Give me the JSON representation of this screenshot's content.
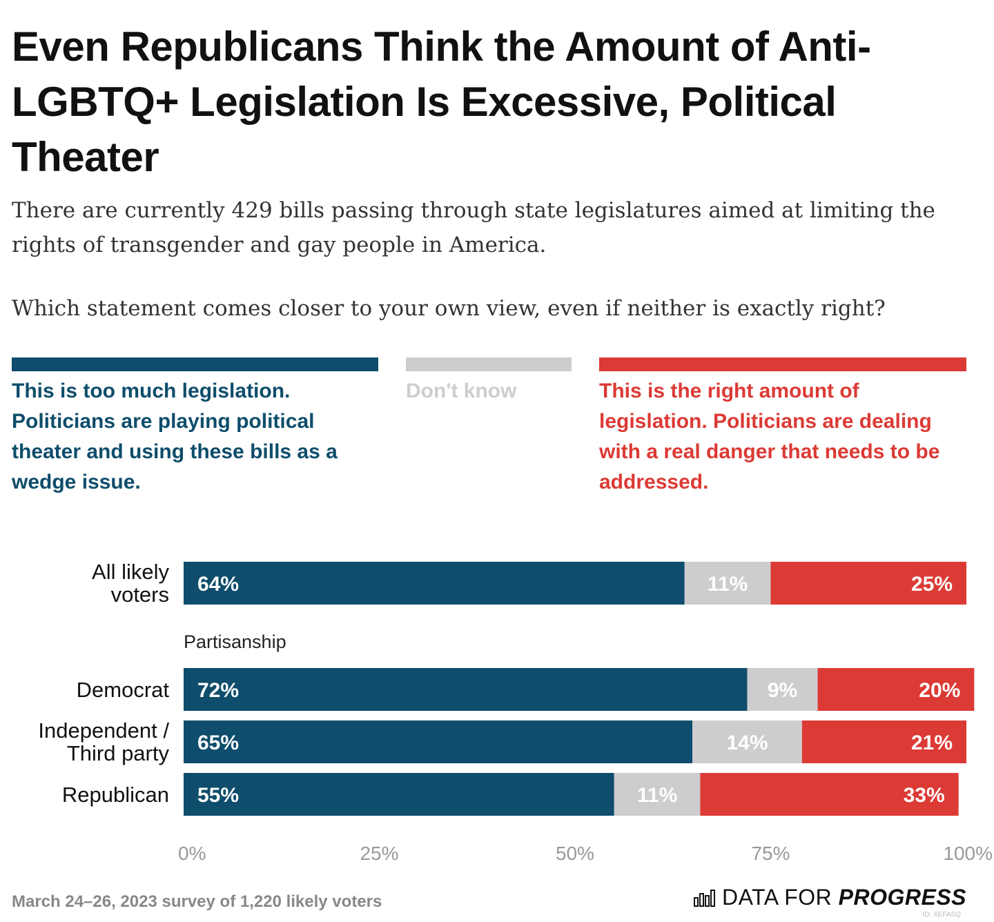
{
  "title": "Even Republicans Think the Amount of Anti-LGBTQ+ Legislation Is Excessive, Political Theater",
  "subtitle": "There are currently 429 bills passing through state legislatures aimed at limiting the rights of transgender and gay people in America.",
  "question": "Which statement comes closer to your own view, even if neither is exactly right?",
  "colors": {
    "too_much": "#0e4d6b",
    "dont_know": "#cfcccf",
    "right_amount": "#dc3a35"
  },
  "legend": [
    {
      "label": "This is too much legislation. Politicians are playing political theater and using these bills as a wedge issue."
    },
    {
      "label": "Don't know"
    },
    {
      "label": "This is the right amount of legislation. Politicians are dealing with a real danger that needs to be addressed."
    }
  ],
  "chart_data": {
    "type": "bar",
    "orientation": "horizontal",
    "stacked": true,
    "categories": [
      "All likely voters",
      "Democrat",
      "Independent / Third party",
      "Republican"
    ],
    "groups": [
      {
        "label": "",
        "categories": [
          "All likely voters"
        ]
      },
      {
        "label": "Partisanship",
        "categories": [
          "Democrat",
          "Independent / Third party",
          "Republican"
        ]
      }
    ],
    "series": [
      {
        "name": "This is too much legislation. Politicians are playing political theater and using these bills as a wedge issue.",
        "values": [
          64,
          72,
          65,
          55
        ],
        "labels": [
          "64%",
          "72%",
          "65%",
          "55%"
        ]
      },
      {
        "name": "Don't know",
        "values": [
          11,
          9,
          14,
          11
        ],
        "labels": [
          "11%",
          "9%",
          "14%",
          "11%"
        ]
      },
      {
        "name": "This is the right amount of legislation. Politicians are dealing with a real danger that needs to be addressed.",
        "values": [
          25,
          20,
          21,
          33
        ],
        "labels": [
          "25%",
          "20%",
          "21%",
          "33%"
        ]
      }
    ],
    "xlim": [
      0,
      100
    ],
    "xticks": [
      0,
      25,
      50,
      75,
      100
    ],
    "xtick_labels": [
      "0%",
      "25%",
      "50%",
      "75%",
      "100%"
    ],
    "grid": false,
    "legend_position": "top"
  },
  "footer": {
    "note": "March 24–26, 2023 survey of 1,220 likely voters",
    "logo_plain": "DATA FOR",
    "logo_bold": "PROGRESS",
    "logo_icon": "bar-chart-icon",
    "id": "ID: XEFASQ"
  }
}
